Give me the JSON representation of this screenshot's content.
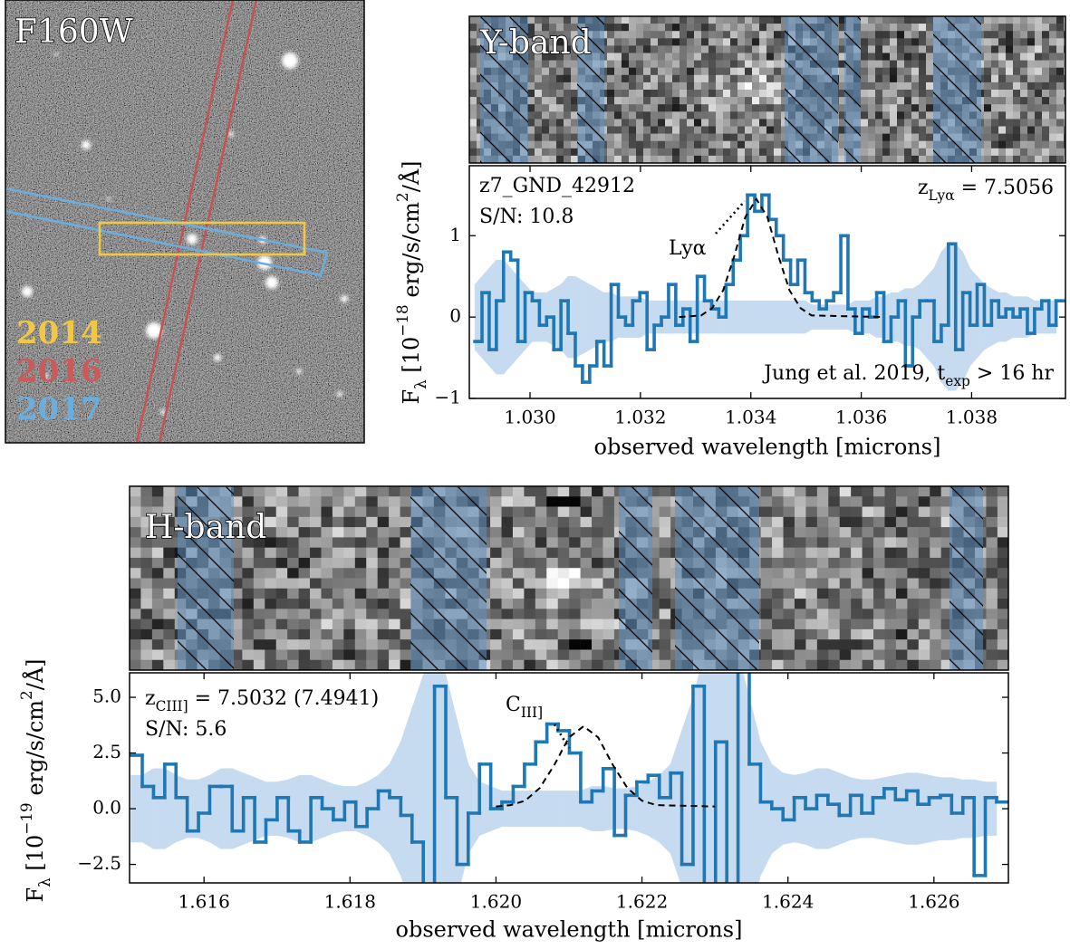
{
  "image_panel": {
    "title": "F160W",
    "labels": [
      {
        "text": "2014",
        "color": "#f2c744"
      },
      {
        "text": "2016",
        "color": "#cc5a5a"
      },
      {
        "text": "2017",
        "color": "#6aaee0"
      }
    ]
  },
  "chart_data": [
    {
      "type": "line",
      "drawstyle": "steps",
      "band_label": "Y-band",
      "object_id": "z7_GND_42912",
      "snr": "S/N: 10.8",
      "redshift": [
        {
          "text": "z"
        },
        {
          "text": "Lyα",
          "shift": "sub"
        },
        {
          "text": " = 7.5056"
        }
      ],
      "line_label": [
        {
          "text": "Lyα"
        }
      ],
      "credit": [
        {
          "text": "Jung et al. 2019, "
        },
        {
          "text": "t"
        },
        {
          "text": "exp",
          "shift": "sub"
        },
        {
          "text": " > 16 hr"
        }
      ],
      "xlabel": "observed wavelength [microns]",
      "ylabel": [
        {
          "text": "F"
        },
        {
          "text": "λ",
          "shift": "sub"
        },
        {
          "text": " [10"
        },
        {
          "text": "−18",
          "shift": "super"
        },
        {
          "text": " erg/s/cm"
        },
        {
          "text": "2",
          "shift": "super"
        },
        {
          "text": "/Å]"
        }
      ],
      "xlim": [
        1.0289,
        1.0397
      ],
      "ylim": [
        -1,
        1.86
      ],
      "xticks": [
        {
          "value": 1.03,
          "label": "1.030"
        },
        {
          "value": 1.032,
          "label": "1.032"
        },
        {
          "value": 1.034,
          "label": "1.034"
        },
        {
          "value": 1.036,
          "label": "1.036"
        },
        {
          "value": 1.038,
          "label": "1.038"
        }
      ],
      "yticks": [
        {
          "value": -1,
          "label": "−1"
        },
        0,
        1
      ],
      "x": [
        1.029,
        1.02913,
        1.02926,
        1.02939,
        1.02952,
        1.02965,
        1.02978,
        1.02991,
        1.03004,
        1.03017,
        1.0303,
        1.03043,
        1.03056,
        1.03069,
        1.03082,
        1.03095,
        1.03108,
        1.03121,
        1.03134,
        1.03147,
        1.0316,
        1.03173,
        1.03186,
        1.03199,
        1.03212,
        1.03225,
        1.03238,
        1.03251,
        1.03264,
        1.03277,
        1.0329,
        1.03303,
        1.03316,
        1.03329,
        1.03342,
        1.03355,
        1.03368,
        1.03381,
        1.03394,
        1.03407,
        1.0342,
        1.03433,
        1.03446,
        1.03459,
        1.03472,
        1.03485,
        1.03498,
        1.03511,
        1.03524,
        1.03537,
        1.0355,
        1.03563,
        1.03576,
        1.03589,
        1.03602,
        1.03615,
        1.03628,
        1.03641,
        1.03654,
        1.03667,
        1.0368,
        1.03693,
        1.03706,
        1.03719,
        1.03732,
        1.03745,
        1.03758,
        1.03771,
        1.03784,
        1.03797,
        1.0381,
        1.03823,
        1.03836,
        1.03849,
        1.03862,
        1.03875,
        1.03888,
        1.03901,
        1.03914,
        1.03927,
        1.0394,
        1.03953
      ],
      "series": [
        {
          "color": "#1f77b4",
          "error_color": "#c6dbef",
          "values": [
            -0.3,
            0.3,
            -0.4,
            0.2,
            0.8,
            0.7,
            -0.3,
            0.3,
            0.2,
            -0.1,
            0.0,
            -0.4,
            0.2,
            -0.2,
            -0.6,
            -0.8,
            -0.6,
            -0.3,
            -0.6,
            0.4,
            0.0,
            -0.1,
            0.2,
            0.3,
            -0.4,
            -0.1,
            0.0,
            0.4,
            -0.1,
            0.1,
            -0.3,
            0.5,
            0.2,
            0.1,
            0.0,
            0.4,
            0.7,
            1.0,
            1.5,
            1.3,
            1.5,
            1.2,
            1.0,
            0.7,
            0.4,
            0.7,
            0.3,
            0.2,
            0.1,
            0.2,
            0.3,
            1.0,
            0.1,
            -0.2,
            0.1,
            0.0,
            0.3,
            -0.3,
            0.0,
            0.2,
            -0.6,
            0.0,
            0.2,
            0.2,
            -0.3,
            -0.1,
            0.9,
            -0.4,
            0.3,
            -0.1,
            0.4,
            -0.1,
            0.2,
            0.0,
            0.1,
            0.0,
            0.1,
            -0.2,
            0.1,
            0.2,
            -0.1,
            0.2
          ],
          "errors": [
            0.4,
            0.5,
            0.6,
            0.7,
            0.7,
            0.6,
            0.5,
            0.4,
            0.3,
            0.3,
            0.3,
            0.35,
            0.4,
            0.5,
            0.5,
            0.45,
            0.4,
            0.35,
            0.3,
            0.3,
            0.25,
            0.25,
            0.25,
            0.25,
            0.2,
            0.2,
            0.2,
            0.2,
            0.2,
            0.2,
            0.2,
            0.2,
            0.2,
            0.2,
            0.2,
            0.2,
            0.2,
            0.2,
            0.2,
            0.2,
            0.2,
            0.2,
            0.2,
            0.2,
            0.2,
            0.2,
            0.2,
            0.15,
            0.15,
            0.15,
            0.15,
            0.15,
            0.15,
            0.2,
            0.2,
            0.2,
            0.25,
            0.25,
            0.3,
            0.3,
            0.35,
            0.35,
            0.4,
            0.5,
            0.6,
            0.8,
            0.9,
            0.9,
            0.8,
            0.6,
            0.5,
            0.4,
            0.35,
            0.3,
            0.3,
            0.25,
            0.25,
            0.25,
            0.2,
            0.2,
            0.2,
            0.2
          ]
        }
      ],
      "model": {
        "color": "#000000",
        "x": [
          1.0327,
          1.0331,
          1.0333,
          1.0335,
          1.0337,
          1.0339,
          1.0341,
          1.0343,
          1.0345,
          1.0347,
          1.0349,
          1.0351,
          1.0364
        ],
        "values": [
          0,
          0.02,
          0.11,
          0.33,
          0.75,
          1.23,
          1.45,
          1.23,
          0.75,
          0.33,
          0.11,
          0.02,
          0
        ]
      }
    },
    {
      "type": "line",
      "drawstyle": "steps",
      "band_label": "H-band",
      "snr": "S/N: 5.6",
      "redshift": [
        {
          "text": "z"
        },
        {
          "text": "CIII]",
          "shift": "sub"
        },
        {
          "text": " = 7.5032 (7.4941)"
        }
      ],
      "line_label": [
        {
          "text": "C"
        },
        {
          "text": "III]",
          "shift": "sub"
        }
      ],
      "xlabel": "observed wavelength [microns]",
      "ylabel": [
        {
          "text": "F"
        },
        {
          "text": "λ",
          "shift": "sub"
        },
        {
          "text": " [10"
        },
        {
          "text": "−19",
          "shift": "super"
        },
        {
          "text": " erg/s/cm"
        },
        {
          "text": "2",
          "shift": "super"
        },
        {
          "text": "/Å]"
        }
      ],
      "xlim": [
        1.61498,
        1.62702
      ],
      "ylim": [
        -3.33,
        6.1
      ],
      "xticks": [
        1.616,
        1.618,
        {
          "value": 1.62,
          "label": "1.620"
        },
        1.622,
        1.624,
        1.626
      ],
      "yticks": [
        {
          "value": -2.5,
          "label": "−2.5"
        },
        {
          "value": 0,
          "label": "0.0"
        },
        2.5,
        {
          "value": 5,
          "label": "5.0"
        }
      ],
      "x": [
        1.615,
        1.615154,
        1.615308,
        1.615462,
        1.615616,
        1.61577,
        1.615924,
        1.616078,
        1.616232,
        1.616386,
        1.61654,
        1.616694,
        1.616848,
        1.617002,
        1.617156,
        1.61731,
        1.617464,
        1.617618,
        1.617772,
        1.617926,
        1.61808,
        1.618234,
        1.618388,
        1.618542,
        1.618696,
        1.61885,
        1.619004,
        1.619158,
        1.619312,
        1.619466,
        1.61962,
        1.619774,
        1.619928,
        1.620082,
        1.620236,
        1.62039,
        1.620544,
        1.620698,
        1.620852,
        1.621006,
        1.62116,
        1.621314,
        1.621468,
        1.621622,
        1.621776,
        1.62193,
        1.622084,
        1.622238,
        1.622392,
        1.622546,
        1.6227,
        1.622854,
        1.623008,
        1.623162,
        1.623316,
        1.62347,
        1.623624,
        1.623778,
        1.623932,
        1.624086,
        1.62424,
        1.624394,
        1.624548,
        1.624702,
        1.624856,
        1.62501,
        1.625164,
        1.625318,
        1.625472,
        1.625626,
        1.62578,
        1.625934,
        1.626088,
        1.626242,
        1.626396,
        1.62655,
        1.626704,
        1.626858
      ],
      "series": [
        {
          "color": "#1f77b4",
          "error_color": "#c6dbef",
          "values": [
            2.4,
            1.0,
            0.5,
            2.0,
            0.5,
            -1.0,
            -0.2,
            1.0,
            1.0,
            -1.0,
            0.5,
            -1.5,
            -0.5,
            0.5,
            -1.0,
            -1.5,
            0.5,
            0.0,
            -0.5,
            0.3,
            -0.8,
            0.0,
            0.8,
            0.5,
            -0.3,
            -1.5,
            -3.5,
            5.5,
            0.5,
            -2.5,
            -0.2,
            2.0,
            0.0,
            0.3,
            1.0,
            2.0,
            3.0,
            3.8,
            3.5,
            2.5,
            0.3,
            0.8,
            1.8,
            -1.2,
            0.6,
            1.2,
            1.5,
            0.5,
            1.6,
            -2.5,
            5.5,
            -3.5,
            3.0,
            -3.5,
            8.0,
            2.0,
            0.3,
            0.0,
            -0.5,
            0.5,
            0.0,
            0.6,
            0.2,
            -0.3,
            0.6,
            -0.2,
            0.5,
            0.9,
            0.4,
            0.8,
            0.2,
            0.5,
            0.6,
            -0.2,
            0.5,
            -3.0,
            0.5,
            0.3
          ],
          "errors": [
            1.5,
            1.5,
            1.8,
            1.8,
            1.5,
            1.3,
            1.3,
            1.5,
            1.8,
            1.8,
            1.6,
            1.4,
            1.2,
            1.2,
            1.3,
            1.5,
            1.5,
            1.3,
            1.1,
            1.0,
            1.0,
            1.2,
            1.5,
            2.0,
            3.0,
            4.5,
            6.0,
            7.0,
            6.0,
            4.0,
            2.0,
            1.2,
            1.0,
            0.8,
            0.8,
            0.8,
            0.8,
            0.8,
            0.8,
            0.8,
            0.8,
            1.0,
            1.0,
            0.9,
            0.9,
            1.0,
            1.2,
            1.5,
            2.0,
            3.5,
            5.0,
            7.0,
            8.0,
            8.0,
            7.0,
            5.0,
            3.0,
            2.0,
            1.6,
            1.5,
            1.6,
            1.8,
            1.8,
            1.6,
            1.4,
            1.3,
            1.3,
            1.4,
            1.5,
            1.6,
            1.6,
            1.5,
            1.4,
            1.4,
            1.3,
            1.3,
            1.2,
            1.2
          ]
        }
      ],
      "model": {
        "color": "#000000",
        "x": [
          1.62,
          1.6202,
          1.6204,
          1.6206,
          1.6208,
          1.621,
          1.6212,
          1.6214,
          1.6216,
          1.6218,
          1.622,
          1.6222,
          1.623
        ],
        "values": [
          0.1,
          0.16,
          0.36,
          0.93,
          1.97,
          3.2,
          3.7,
          3.2,
          1.97,
          0.93,
          0.36,
          0.16,
          0.1
        ]
      }
    }
  ]
}
